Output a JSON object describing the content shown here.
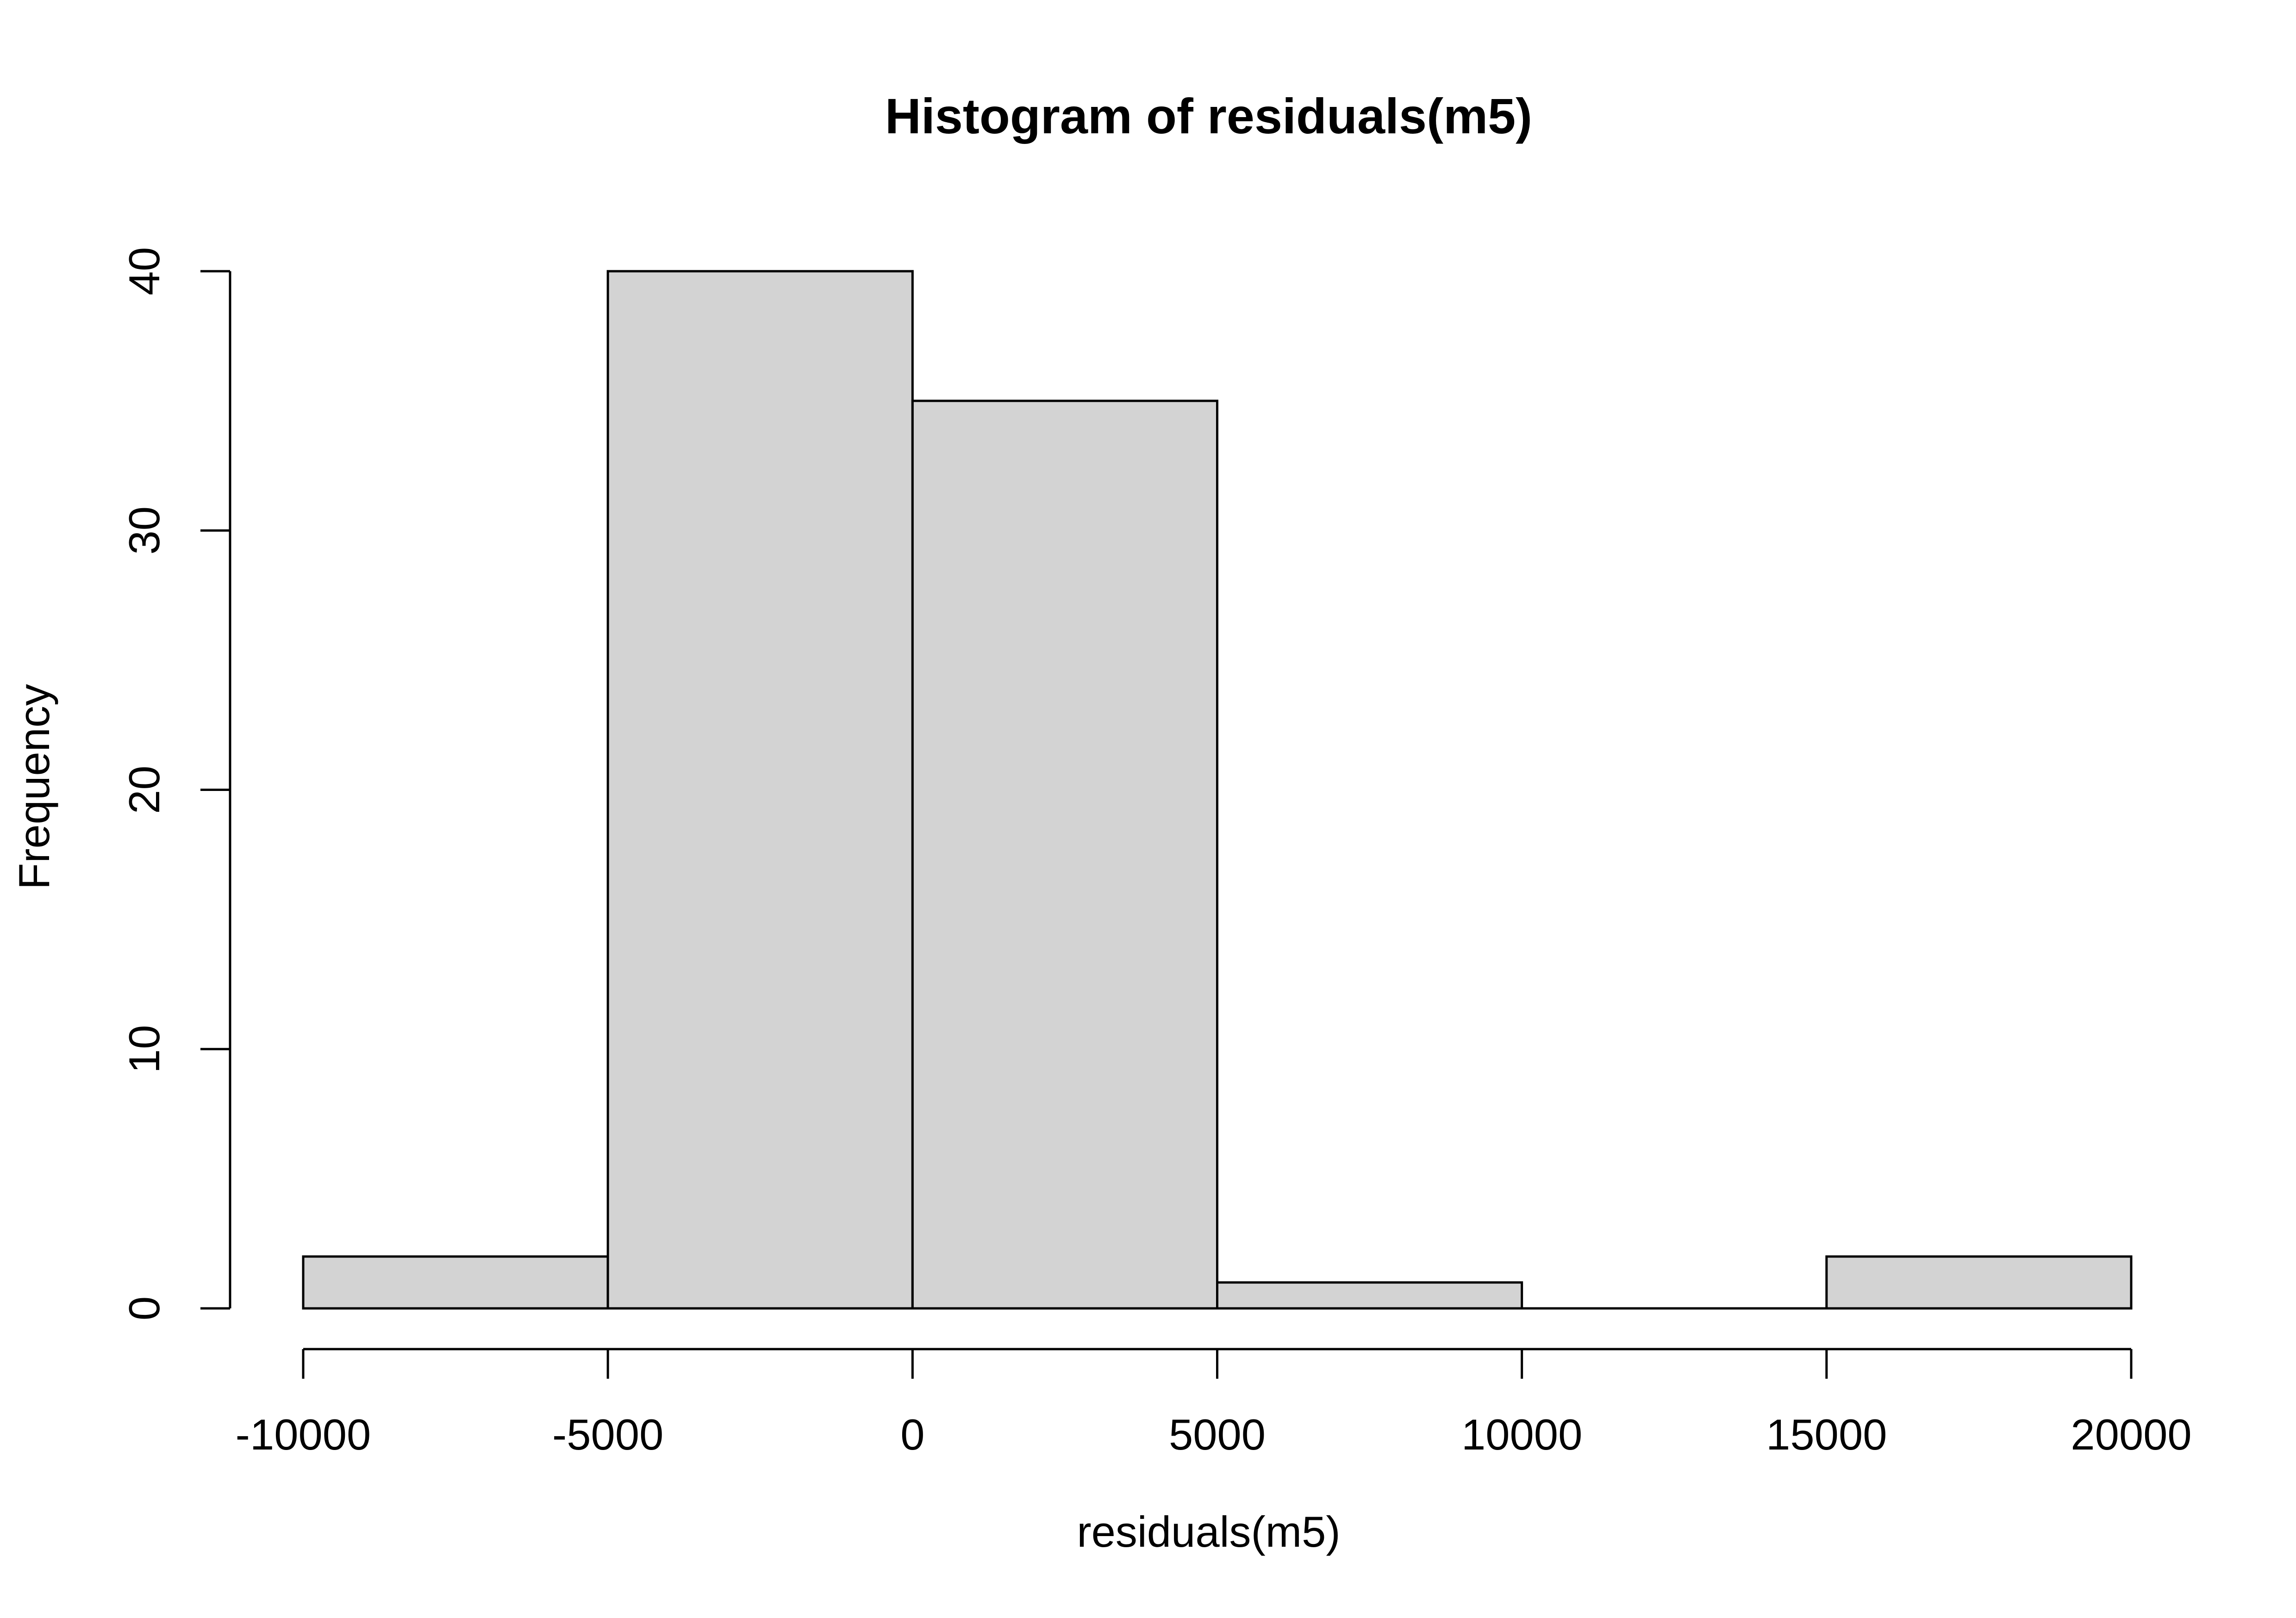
{
  "chart_data": {
    "type": "bar",
    "title": "Histogram of residuals(m5)",
    "xlabel": "residuals(m5)",
    "ylabel": "Frequency",
    "bins": [
      {
        "start": -10000,
        "end": -5000,
        "count": 2
      },
      {
        "start": -5000,
        "end": 0,
        "count": 40
      },
      {
        "start": 0,
        "end": 5000,
        "count": 35
      },
      {
        "start": 5000,
        "end": 10000,
        "count": 1
      },
      {
        "start": 10000,
        "end": 15000,
        "count": 0
      },
      {
        "start": 15000,
        "end": 20000,
        "count": 2
      }
    ],
    "xlim": [
      -10000,
      20000
    ],
    "ylim": [
      0,
      40
    ],
    "x_ticks": [
      -10000,
      -5000,
      0,
      5000,
      10000,
      15000,
      20000
    ],
    "x_tick_labels": [
      "-10000",
      "-5000",
      "0",
      "5000",
      "10000",
      "15000",
      "20000"
    ],
    "y_ticks": [
      0,
      10,
      20,
      30,
      40
    ],
    "y_tick_labels": [
      "0",
      "10",
      "20",
      "30",
      "40"
    ],
    "bar_color": "#d3d3d3",
    "edge_color": "#000000",
    "grid": false
  }
}
